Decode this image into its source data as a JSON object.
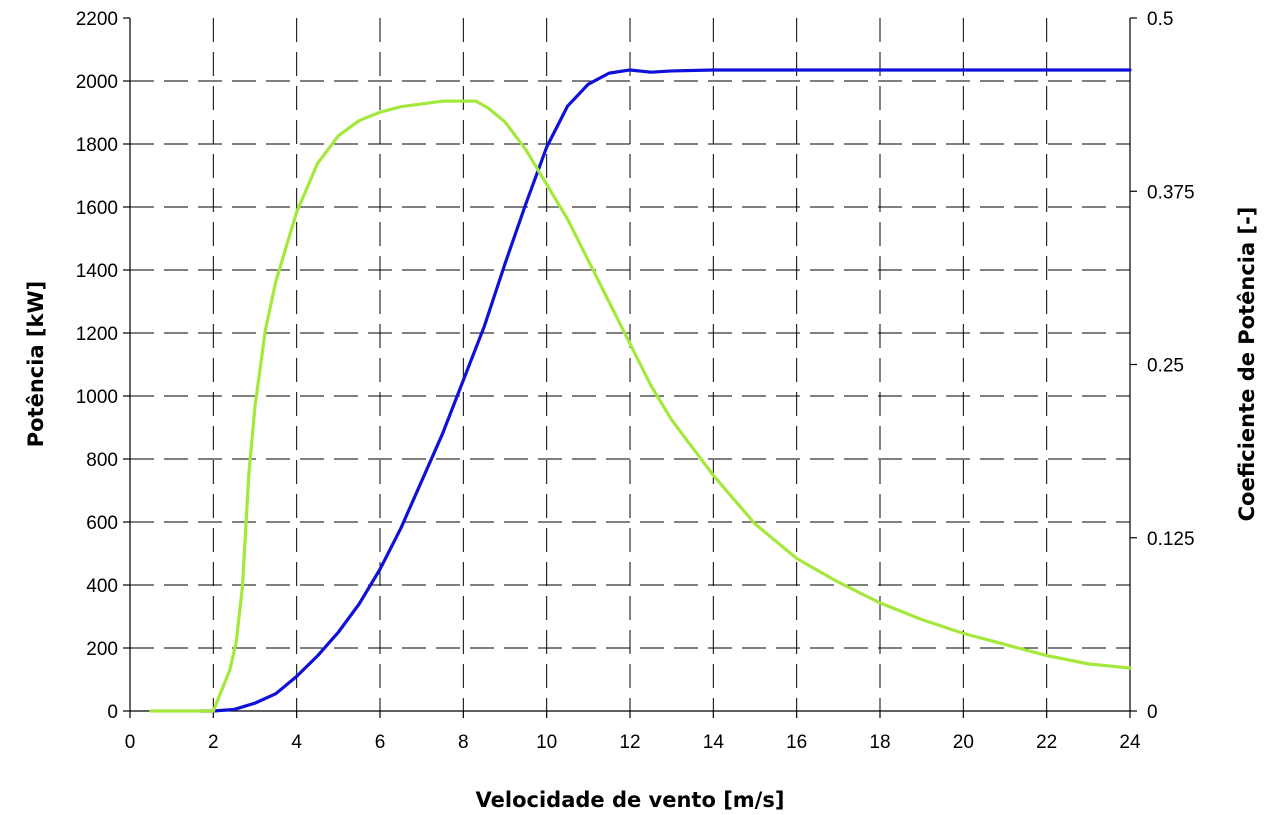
{
  "chart_data": {
    "type": "line",
    "title": "",
    "xlabel": "Velocidade de vento [m/s]",
    "ylabel": "Potência [kW]",
    "y2label": "Coeficiente de Potência [-]",
    "xlim": [
      0,
      24
    ],
    "ylim": [
      0,
      2200
    ],
    "y2lim": [
      0,
      0.5
    ],
    "grid": true,
    "legend": "none",
    "x_ticks": [
      "0",
      "2",
      "4",
      "6",
      "8",
      "10",
      "12",
      "14",
      "16",
      "18",
      "20",
      "22",
      "24"
    ],
    "y_ticks": [
      "0",
      "200",
      "400",
      "600",
      "800",
      "1000",
      "1200",
      "1400",
      "1600",
      "1800",
      "2000",
      "2200"
    ],
    "y2_ticks": [
      "0",
      "0.125",
      "0.25",
      "0.375",
      "0.5"
    ],
    "series": [
      {
        "axis": "left",
        "color": "#1010d8",
        "points": [
          [
            1.7,
            0
          ],
          [
            2.0,
            0
          ],
          [
            2.5,
            5
          ],
          [
            3.0,
            25
          ],
          [
            3.5,
            55
          ],
          [
            4.0,
            110
          ],
          [
            4.5,
            175
          ],
          [
            5.0,
            250
          ],
          [
            5.5,
            340
          ],
          [
            6.0,
            450
          ],
          [
            6.5,
            580
          ],
          [
            7.0,
            730
          ],
          [
            7.5,
            880
          ],
          [
            8.0,
            1050
          ],
          [
            8.5,
            1220
          ],
          [
            9.0,
            1420
          ],
          [
            9.5,
            1610
          ],
          [
            10.0,
            1790
          ],
          [
            10.5,
            1920
          ],
          [
            11.0,
            1990
          ],
          [
            11.5,
            2025
          ],
          [
            12.0,
            2035
          ],
          [
            12.5,
            2028
          ],
          [
            13.0,
            2032
          ],
          [
            14.0,
            2035
          ],
          [
            16.0,
            2035
          ],
          [
            18.0,
            2035
          ],
          [
            20.0,
            2035
          ],
          [
            22.0,
            2035
          ],
          [
            24.0,
            2035
          ]
        ]
      },
      {
        "axis": "right",
        "color": "#a4e83c",
        "points": [
          [
            0.5,
            0
          ],
          [
            1.6,
            0
          ],
          [
            2.0,
            0
          ],
          [
            2.2,
            0.015
          ],
          [
            2.4,
            0.03
          ],
          [
            2.55,
            0.05
          ],
          [
            2.7,
            0.09
          ],
          [
            2.85,
            0.17
          ],
          [
            3.0,
            0.22
          ],
          [
            3.25,
            0.275
          ],
          [
            3.5,
            0.31
          ],
          [
            3.75,
            0.335
          ],
          [
            4.0,
            0.36
          ],
          [
            4.5,
            0.395
          ],
          [
            5.0,
            0.415
          ],
          [
            5.5,
            0.426
          ],
          [
            6.0,
            0.432
          ],
          [
            6.5,
            0.436
          ],
          [
            7.0,
            0.438
          ],
          [
            7.5,
            0.44
          ],
          [
            8.0,
            0.44
          ],
          [
            8.3,
            0.44
          ],
          [
            8.6,
            0.435
          ],
          [
            9.0,
            0.425
          ],
          [
            9.5,
            0.405
          ],
          [
            10.0,
            0.38
          ],
          [
            10.5,
            0.355
          ],
          [
            11.0,
            0.325
          ],
          [
            11.5,
            0.295
          ],
          [
            12.0,
            0.265
          ],
          [
            12.5,
            0.235
          ],
          [
            13.0,
            0.21
          ],
          [
            13.5,
            0.19
          ],
          [
            14.0,
            0.17
          ],
          [
            15.0,
            0.135
          ],
          [
            16.0,
            0.11
          ],
          [
            17.0,
            0.093
          ],
          [
            18.0,
            0.078
          ],
          [
            19.0,
            0.066
          ],
          [
            20.0,
            0.056
          ],
          [
            21.0,
            0.048
          ],
          [
            22.0,
            0.04
          ],
          [
            23.0,
            0.034
          ],
          [
            24.0,
            0.031
          ]
        ]
      }
    ]
  }
}
